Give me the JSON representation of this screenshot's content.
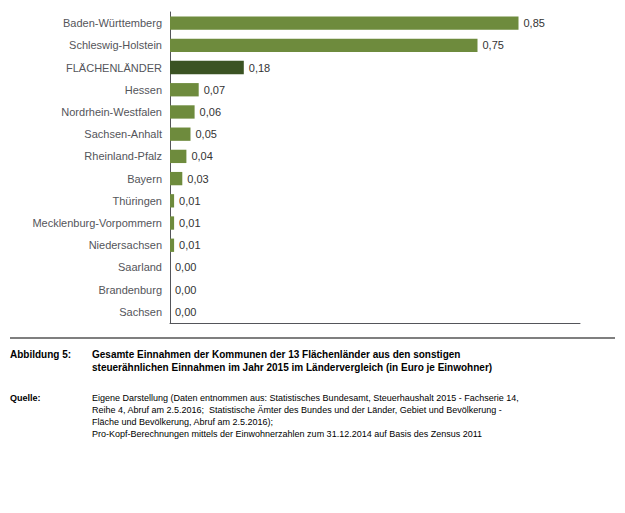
{
  "chart_data": {
    "type": "bar",
    "orientation": "horizontal",
    "categories": [
      "Baden-Württemberg",
      "Schleswig-Holstein",
      "FLÄCHENLÄNDER",
      "Hessen",
      "Nordrhein-Westfalen",
      "Sachsen-Anhalt",
      "Rheinland-Pfalz",
      "Bayern",
      "Thüringen",
      "Mecklenburg-Vorpommern",
      "Niedersachsen",
      "Saarland",
      "Brandenburg",
      "Sachsen"
    ],
    "values": [
      0.85,
      0.75,
      0.18,
      0.07,
      0.06,
      0.05,
      0.04,
      0.03,
      0.01,
      0.01,
      0.01,
      0.0,
      0.0,
      0.0
    ],
    "value_labels": [
      "0,85",
      "0,75",
      "0,18",
      "0,07",
      "0,06",
      "0,05",
      "0,04",
      "0,03",
      "0,01",
      "0,01",
      "0,01",
      "0,00",
      "0,00",
      "0,00"
    ],
    "data_labels": true,
    "colors": [
      "#6e8b3d",
      "#6e8b3d",
      "#3b5323",
      "#6e8b3d",
      "#6e8b3d",
      "#6e8b3d",
      "#6e8b3d",
      "#6e8b3d",
      "#6e8b3d",
      "#6e8b3d",
      "#6e8b3d",
      "#6e8b3d",
      "#6e8b3d",
      "#6e8b3d"
    ],
    "xlim": [
      0,
      1.0
    ],
    "tick_labels": "y",
    "grid": false,
    "annotations": [
      "Abbildung 5:",
      "Gesamte Einnahmen der Kommunen der 13 Flächenländer aus den sonstigen\nsteuerähnlichen Einnahmen im Jahr 2015 im Ländervergleich (in Euro je Einwohner)",
      "Quelle:",
      "Eigene Darstellung (Daten entnommen aus: Statistisches Bundesamt, Steuerhaushalt 2015 - Fachserie 14,\nReihe 4, Abruf am 2.5.2016;  Statistische Ämter des Bundes und der Länder, Gebiet und Bevölkerung -\nFläche und Bevölkerung, Abruf am 2.5.2016);\nPro-Kopf-Berechnungen mittels der Einwohnerzahlen zum 31.12.2014 auf Basis des Zensus 2011"
    ]
  }
}
